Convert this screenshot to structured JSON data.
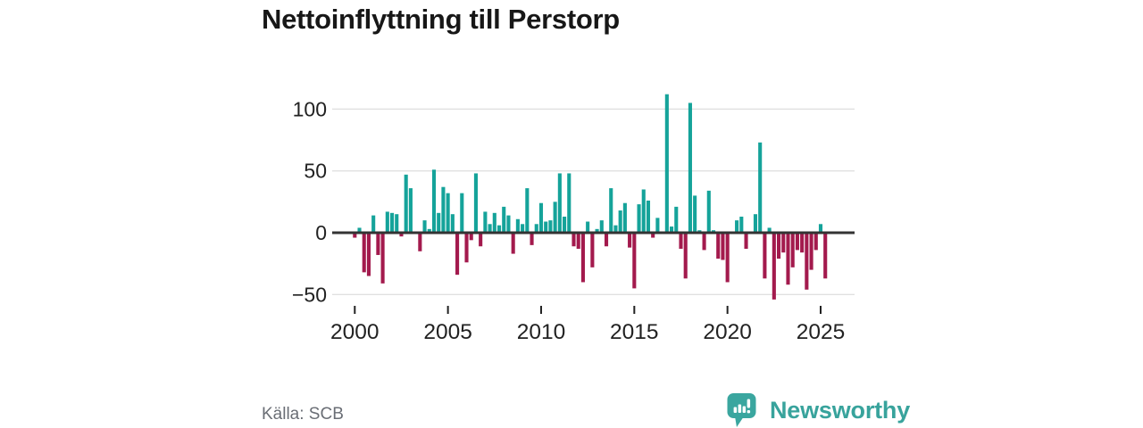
{
  "header": {
    "title": "Nettoinflyttning till Perstorp"
  },
  "footer": {
    "source": "Källa: SCB",
    "brand": {
      "name": "Newsworthy",
      "icon": "bar-chart-speech-bubble-icon"
    }
  },
  "colors": {
    "positive_bar": "#15a39a",
    "negative_bar": "#a31a4d",
    "brand_teal": "#3aa69f",
    "grid": "#e0e0e0",
    "zero_line": "#333333",
    "tick_label": "#222222",
    "title_text": "#171717",
    "source_text": "#6a6e75",
    "background": "#ffffff"
  },
  "chart_data": {
    "type": "bar",
    "title": "Nettoinflyttning till Perstorp",
    "frequency": "quarterly",
    "start": "2000-Q1",
    "end": "2025-Q2",
    "grid": true,
    "x_tick_labels": [
      "2000",
      "2005",
      "2010",
      "2015",
      "2020",
      "2025"
    ],
    "x_tick_indices": [
      0,
      20,
      40,
      60,
      80,
      100
    ],
    "y_tick_values": [
      100,
      50,
      0,
      -50
    ],
    "y_tick_labels": [
      "100",
      "50",
      "0",
      "−50"
    ],
    "ylim": [
      -60,
      125
    ],
    "values": [
      -4,
      4,
      -32,
      -35,
      14,
      -18,
      -41,
      17,
      16,
      15,
      -3,
      47,
      36,
      0,
      -15,
      10,
      3,
      51,
      16,
      37,
      32,
      15,
      -34,
      32,
      -24,
      -6,
      48,
      -11,
      17,
      7,
      16,
      6,
      21,
      14,
      -17,
      11,
      7,
      36,
      -10,
      7,
      24,
      9,
      10,
      25,
      48,
      13,
      48,
      -11,
      -13,
      -40,
      9,
      -28,
      3,
      10,
      -11,
      36,
      6,
      18,
      24,
      -12,
      -45,
      23,
      35,
      26,
      -4,
      12,
      0,
      112,
      5,
      21,
      -13,
      -37,
      105,
      30,
      2,
      -14,
      34,
      2,
      -21,
      -22,
      -40,
      0,
      10,
      13,
      -13,
      0,
      15,
      73,
      -37,
      4,
      -54,
      -21,
      -16,
      -42,
      -28,
      -14,
      -16,
      -46,
      -30,
      -14,
      7,
      -37
    ]
  }
}
